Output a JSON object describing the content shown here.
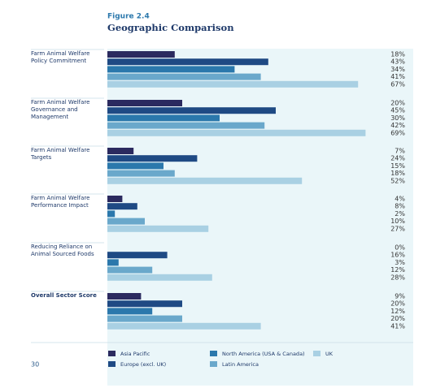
{
  "page_number": "30",
  "chart_data": {
    "type": "bar",
    "orientation": "horizontal",
    "figure_label": "Figure 2.4",
    "title": "Geographic Comparison",
    "categories": [
      "Farm Animal Welfare Policy Commitment",
      "Farm Animal Welfare Governance and Management",
      "Farm Animal Welfare Targets",
      "Farm Animal Welfare Performance Impact",
      "Reducing Reliance on Animal Sourced Foods",
      "Overall Sector Score"
    ],
    "series": [
      {
        "name": "Asia Pacific",
        "color": "#2b2a5f",
        "values": [
          18,
          20,
          7,
          4,
          0,
          9
        ],
        "value_labels": [
          "18%",
          "20%",
          "7%",
          "4%",
          "0%",
          "9%"
        ]
      },
      {
        "name": "Europe (excl. UK)",
        "color": "#1f4a84",
        "values": [
          43,
          45,
          24,
          8,
          16,
          20
        ],
        "value_labels": [
          "43%",
          "45%",
          "24%",
          "8%",
          "16%",
          "20%"
        ]
      },
      {
        "name": "North America (USA & Canada)",
        "color": "#2b78ac",
        "values": [
          34,
          30,
          15,
          2,
          3,
          12
        ],
        "value_labels": [
          "34%",
          "30%",
          "15%",
          "2%",
          "3%",
          "12%"
        ]
      },
      {
        "name": "Latin America",
        "color": "#6aa8cb",
        "values": [
          41,
          42,
          18,
          10,
          12,
          20
        ],
        "value_labels": [
          "41%",
          "42%",
          "18%",
          "10%",
          "12%",
          "20%"
        ]
      },
      {
        "name": "UK",
        "color": "#a9d0e3",
        "values": [
          67,
          69,
          52,
          27,
          28,
          41
        ],
        "value_labels": [
          "67%",
          "69%",
          "52%",
          "27%",
          "28%",
          "41%"
        ]
      }
    ]
  }
}
